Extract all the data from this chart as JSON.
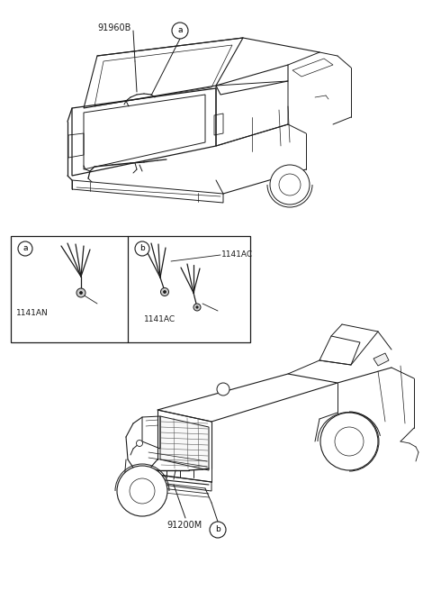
{
  "background_color": "#ffffff",
  "line_color": "#1a1a1a",
  "gray_color": "#888888",
  "top_car_label": "91960B",
  "callout_a": "a",
  "bottom_car_label": "91200M",
  "callout_b": "b",
  "box_left_label": "a",
  "box_right_label": "b",
  "clip_left_label": "1141AN",
  "clip_right_upper_label": "1141AC",
  "clip_right_lower_label": "1141AC",
  "fig_width": 4.8,
  "fig_height": 6.56,
  "dpi": 100
}
